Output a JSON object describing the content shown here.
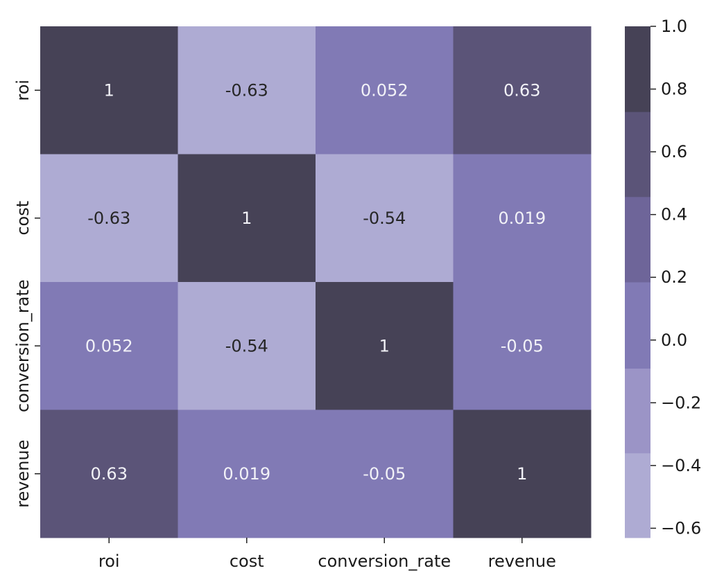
{
  "chart_data": {
    "type": "heatmap",
    "title": "",
    "xlabel": "",
    "ylabel": "",
    "row_labels": [
      "roi",
      "cost",
      "conversion_rate",
      "revenue"
    ],
    "col_labels": [
      "roi",
      "cost",
      "conversion_rate",
      "revenue"
    ],
    "values": [
      [
        1,
        -0.63,
        0.052,
        0.63
      ],
      [
        -0.63,
        1,
        -0.54,
        0.019
      ],
      [
        0.052,
        -0.54,
        1,
        -0.05
      ],
      [
        0.63,
        0.019,
        -0.05,
        1
      ]
    ],
    "annotations": [
      [
        "1",
        "-0.63",
        "0.052",
        "0.63"
      ],
      [
        "-0.63",
        "1",
        "-0.54",
        "0.019"
      ],
      [
        "0.052",
        "-0.54",
        "1",
        "-0.05"
      ],
      [
        "0.63",
        "0.019",
        "-0.05",
        "1"
      ]
    ],
    "colorbar": {
      "range": [
        -0.63,
        1.0
      ],
      "ticks": [
        1.0,
        0.8,
        0.6,
        0.4,
        0.2,
        0.0,
        -0.2,
        -0.4,
        -0.6
      ],
      "tick_labels": [
        "1.0",
        "0.8",
        "0.6",
        "0.4",
        "0.2",
        "0.0",
        "−0.2",
        "−0.4",
        "−0.6"
      ],
      "bins": [
        {
          "from": -0.63,
          "to": -0.36,
          "color": "#aeabd3"
        },
        {
          "from": -0.36,
          "to": -0.09,
          "color": "#9b94c6"
        },
        {
          "from": -0.09,
          "to": 0.185,
          "color": "#817ab5"
        },
        {
          "from": 0.185,
          "to": 0.457,
          "color": "#6e6599"
        },
        {
          "from": 0.457,
          "to": 0.728,
          "color": "#5b5478"
        },
        {
          "from": 0.728,
          "to": 1.0,
          "color": "#464256"
        }
      ]
    },
    "annotation_colors": {
      "light_text": "#f2f2f7",
      "dark_text": "#262626"
    },
    "grid": false,
    "legend": "colorbar-right"
  }
}
